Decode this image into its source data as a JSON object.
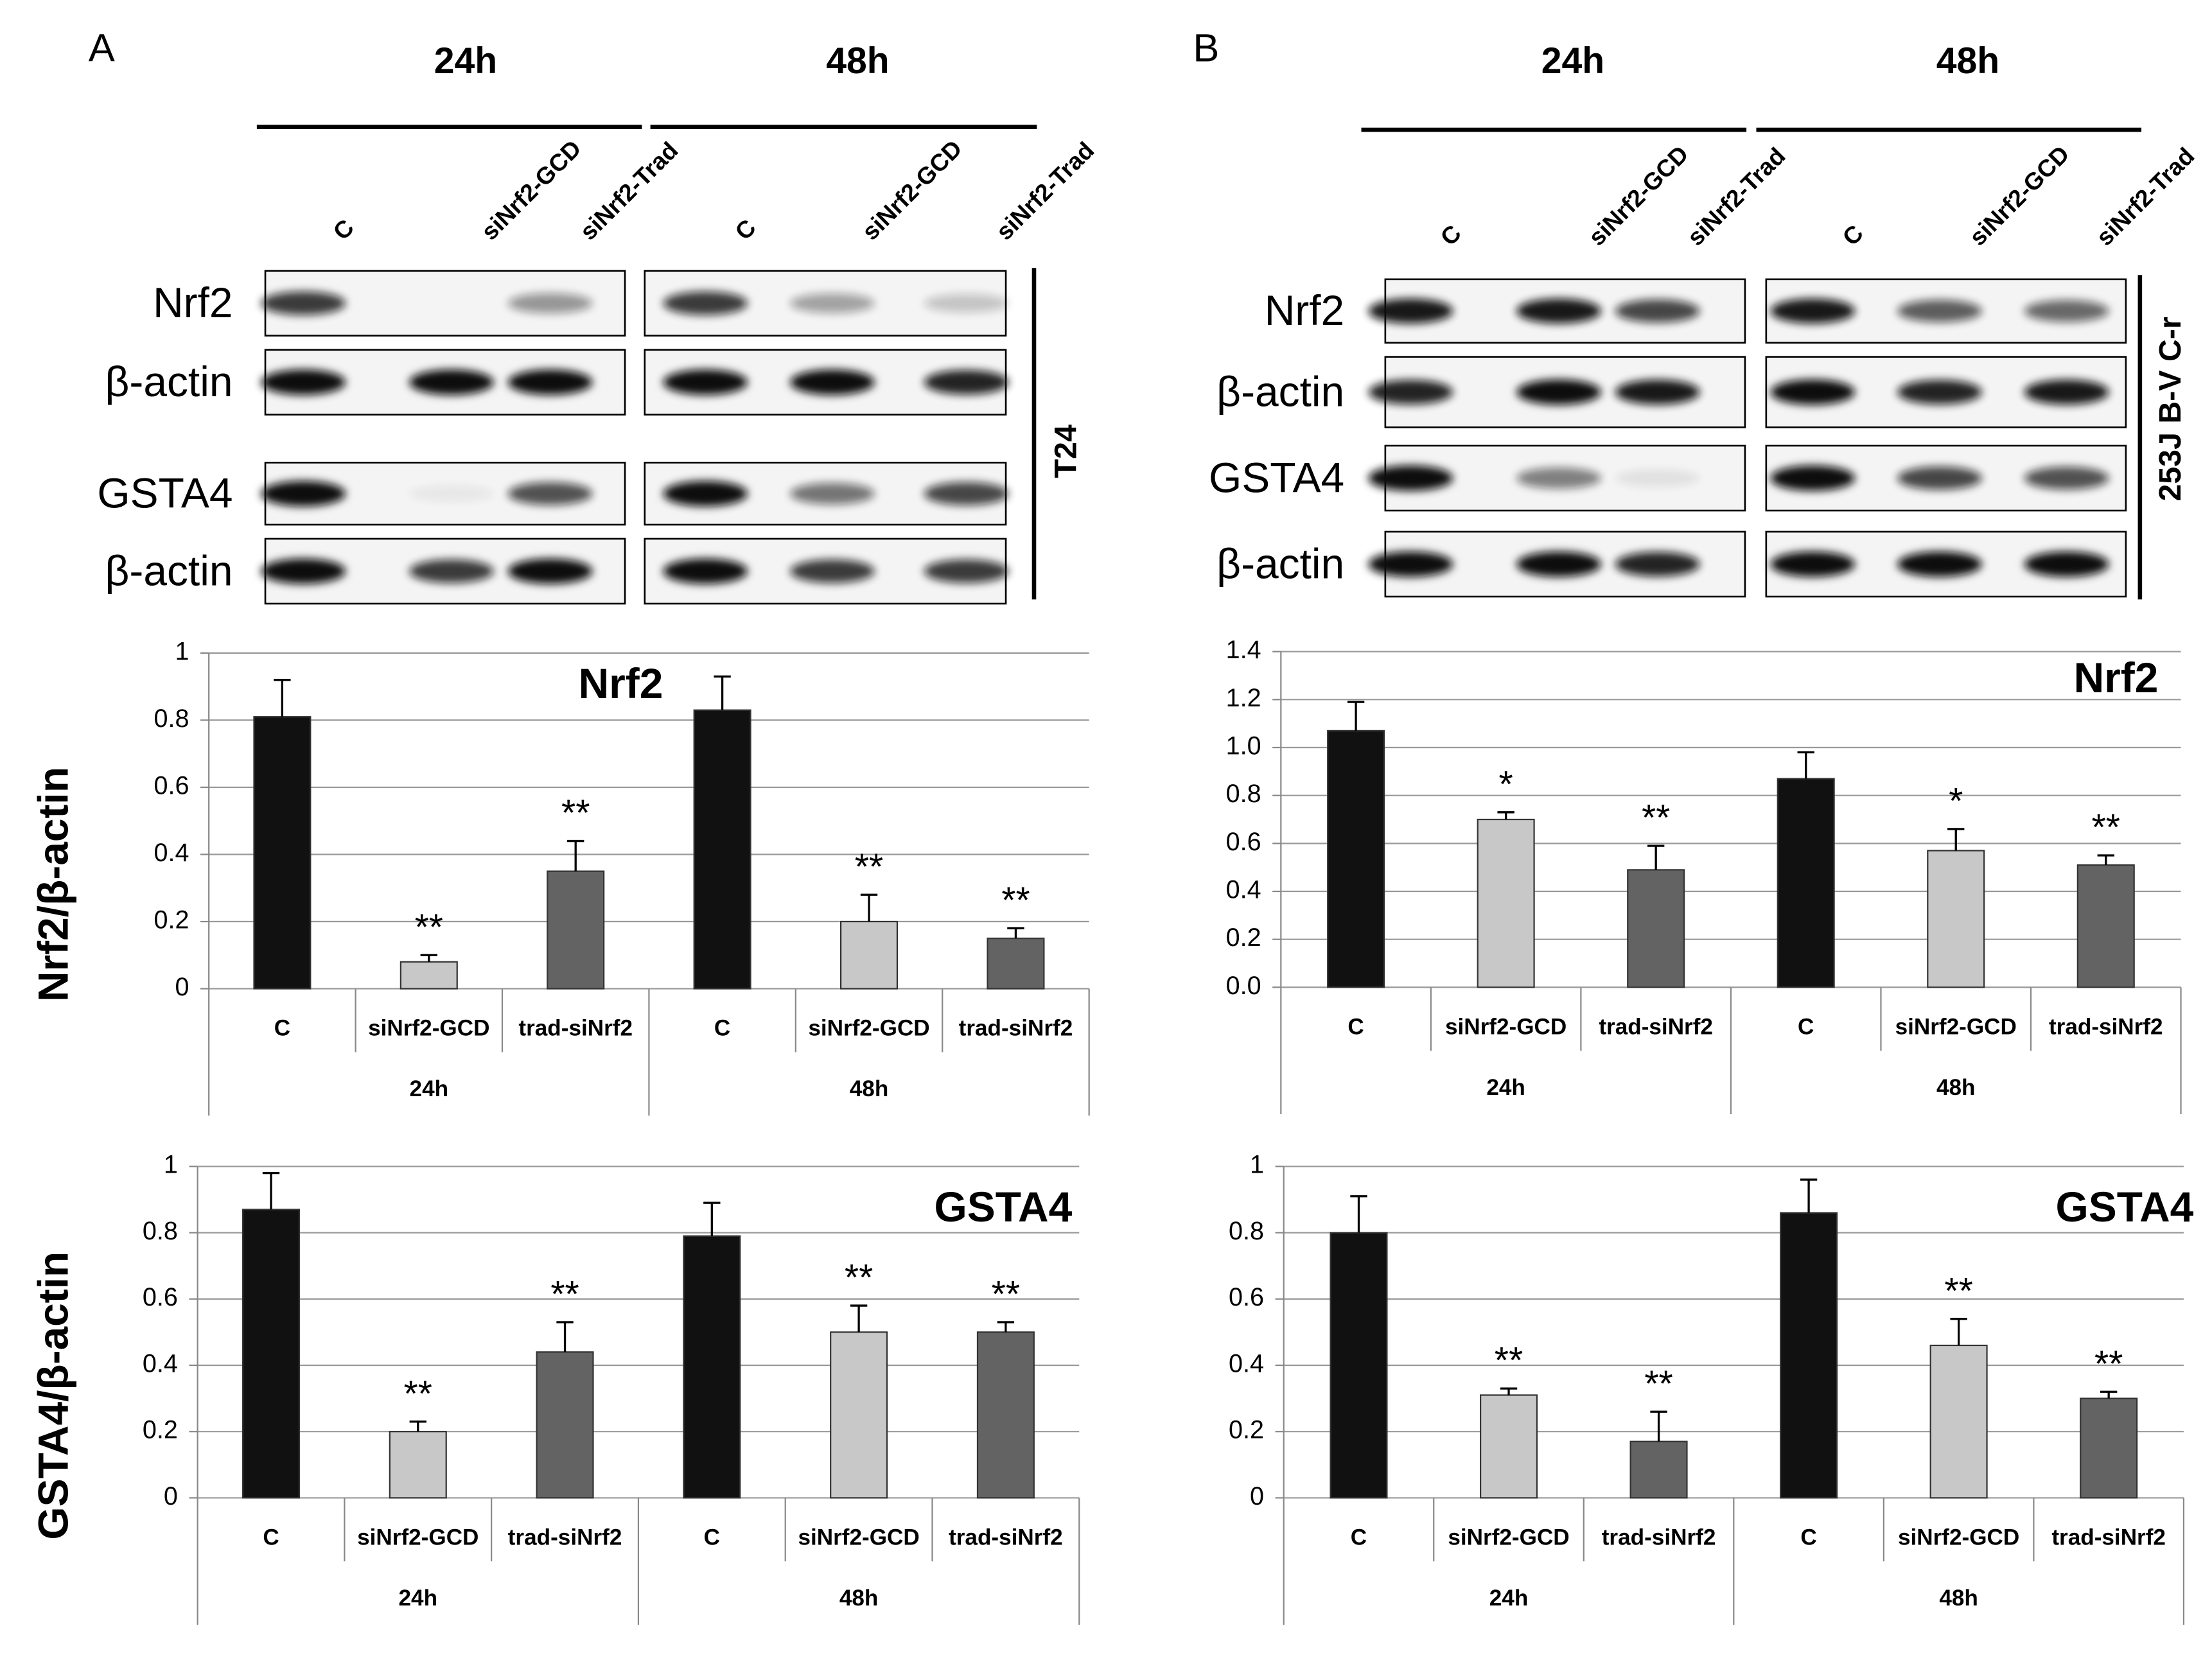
{
  "panels": [
    {
      "label": "A",
      "cell_line": "T24",
      "groups": [
        {
          "time": "24h",
          "lanes": [
            "C",
            "siNrf2-GCD",
            "siNrf2-Trad"
          ]
        },
        {
          "time": "48h",
          "lanes": [
            "C",
            "siNrf2-GCD",
            "siNrf2-Trad"
          ]
        }
      ],
      "rows": [
        "Nrf2",
        "β-actin",
        "GSTA4",
        "β-actin"
      ]
    },
    {
      "label": "B",
      "cell_line": "253J B-V C-r",
      "groups": [
        {
          "time": "24h",
          "lanes": [
            "C",
            "siNrf2-GCD",
            "siNrf2-Trad"
          ]
        },
        {
          "time": "48h",
          "lanes": [
            "C",
            "siNrf2-GCD",
            "siNrf2-Trad"
          ]
        }
      ],
      "rows": [
        "Nrf2",
        "β-actin",
        "GSTA4",
        "β-actin"
      ]
    }
  ],
  "chart_data": [
    {
      "type": "bar",
      "title": "Nrf2",
      "y_label": "Nrf2/β-actin",
      "categories": [
        "C",
        "siNrf2-GCD",
        "trad-siNrf2",
        "C",
        "siNrf2-GCD",
        "trad-siNrf2"
      ],
      "groups": [
        "24h",
        "48h"
      ],
      "values": [
        0.81,
        0.08,
        0.35,
        0.83,
        0.2,
        0.15
      ],
      "errors": [
        0.11,
        0.02,
        0.09,
        0.1,
        0.08,
        0.03
      ],
      "annotations": [
        null,
        "**",
        "**",
        null,
        "**",
        "**"
      ],
      "colors": [
        "#111111",
        "#c8c8c8",
        "#636363",
        "#111111",
        "#c8c8c8",
        "#636363"
      ],
      "ylim": [
        0,
        1
      ],
      "yticks": [
        0,
        0.2,
        0.4,
        0.6,
        0.8,
        1
      ],
      "grid": true
    },
    {
      "type": "bar",
      "title": "Nrf2",
      "categories": [
        "C",
        "siNrf2-GCD",
        "trad-siNrf2",
        "C",
        "siNrf2-GCD",
        "trad-siNrf2"
      ],
      "groups": [
        "24h",
        "48h"
      ],
      "values": [
        1.07,
        0.7,
        0.49,
        0.87,
        0.57,
        0.51
      ],
      "errors": [
        0.12,
        0.03,
        0.1,
        0.11,
        0.09,
        0.04
      ],
      "annotations": [
        null,
        "*",
        "**",
        null,
        "*",
        "**"
      ],
      "colors": [
        "#111111",
        "#c8c8c8",
        "#636363",
        "#111111",
        "#c8c8c8",
        "#636363"
      ],
      "ylim": [
        0,
        1.4
      ],
      "yticks": [
        {
          "value": 0,
          "label": "0.0"
        },
        {
          "value": 0.2,
          "label": "0.2"
        },
        {
          "value": 0.4,
          "label": "0.4"
        },
        {
          "value": 0.6,
          "label": "0.6"
        },
        {
          "value": 0.8,
          "label": "0.8"
        },
        {
          "value": 1,
          "label": "1.0"
        },
        {
          "value": 1.2,
          "label": "1.2"
        },
        {
          "value": 1.4,
          "label": "1.4"
        }
      ],
      "grid": true
    },
    {
      "type": "bar",
      "title": "GSTA4",
      "y_label": "GSTA4/β-actin",
      "categories": [
        "C",
        "siNrf2-GCD",
        "trad-siNrf2",
        "C",
        "siNrf2-GCD",
        "trad-siNrf2"
      ],
      "groups": [
        "24h",
        "48h"
      ],
      "values": [
        0.87,
        0.2,
        0.44,
        0.79,
        0.5,
        0.5
      ],
      "errors": [
        0.11,
        0.03,
        0.09,
        0.1,
        0.08,
        0.03
      ],
      "annotations": [
        null,
        "**",
        "**",
        null,
        "**",
        "**"
      ],
      "colors": [
        "#111111",
        "#c8c8c8",
        "#636363",
        "#111111",
        "#c8c8c8",
        "#636363"
      ],
      "ylim": [
        0,
        1
      ],
      "yticks": [
        0,
        0.2,
        0.4,
        0.6,
        0.8,
        1
      ],
      "grid": true
    },
    {
      "type": "bar",
      "title": "GSTA4",
      "categories": [
        "C",
        "siNrf2-GCD",
        "trad-siNrf2",
        "C",
        "siNrf2-GCD",
        "trad-siNrf2"
      ],
      "groups": [
        "24h",
        "48h"
      ],
      "values": [
        0.8,
        0.31,
        0.17,
        0.86,
        0.46,
        0.3
      ],
      "errors": [
        0.11,
        0.02,
        0.09,
        0.1,
        0.08,
        0.02
      ],
      "annotations": [
        null,
        "**",
        "**",
        null,
        "**",
        "**"
      ],
      "colors": [
        "#111111",
        "#c8c8c8",
        "#636363",
        "#111111",
        "#c8c8c8",
        "#636363"
      ],
      "ylim": [
        0,
        1
      ],
      "yticks": [
        0,
        0.2,
        0.4,
        0.6,
        0.8,
        1
      ],
      "grid": true
    }
  ]
}
